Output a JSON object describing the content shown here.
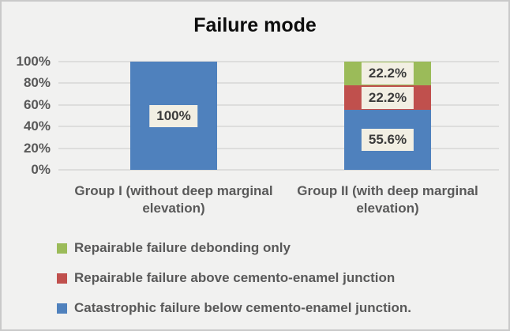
{
  "chart_data": {
    "type": "bar",
    "subtype": "stacked-100-percent",
    "title": "Failure mode",
    "categories": [
      "Group I (without deep marginal elevation)",
      "Group II (with deep marginal elevation)"
    ],
    "series": [
      {
        "name": "Catastrophic failure below cemento-enamel junction.",
        "color": "#4F81BD",
        "values": [
          100,
          55.6
        ],
        "data_labels": [
          "100%",
          "55.6%"
        ]
      },
      {
        "name": "Repairable failure above cemento-enamel junction",
        "color": "#C0504D",
        "values": [
          0,
          22.2
        ],
        "data_labels": [
          "",
          "22.2%"
        ]
      },
      {
        "name": "Repairable failure debonding only",
        "color": "#9BBB59",
        "values": [
          0,
          22.2
        ],
        "data_labels": [
          "",
          "22.2%"
        ]
      }
    ],
    "y_ticks": [
      "0%",
      "20%",
      "40%",
      "60%",
      "80%",
      "100%"
    ],
    "ylim": [
      0,
      100
    ],
    "grid": true,
    "legend_position": "bottom-left",
    "legend": {
      "items": [
        {
          "label": "Repairable failure debonding only",
          "color": "#9BBB59"
        },
        {
          "label": "Repairable failure above cemento-enamel junction",
          "color": "#C0504D"
        },
        {
          "label": "Catastrophic failure below cemento-enamel junction.",
          "color": "#4F81BD"
        }
      ]
    },
    "colors": {
      "background": "#F1F1F0",
      "border": "#C9C9C9",
      "gridline": "#DDDDDC",
      "data_label_background": "#F2EFE3",
      "axis_text": "#595959",
      "title_text": "#0D0D0D"
    }
  }
}
